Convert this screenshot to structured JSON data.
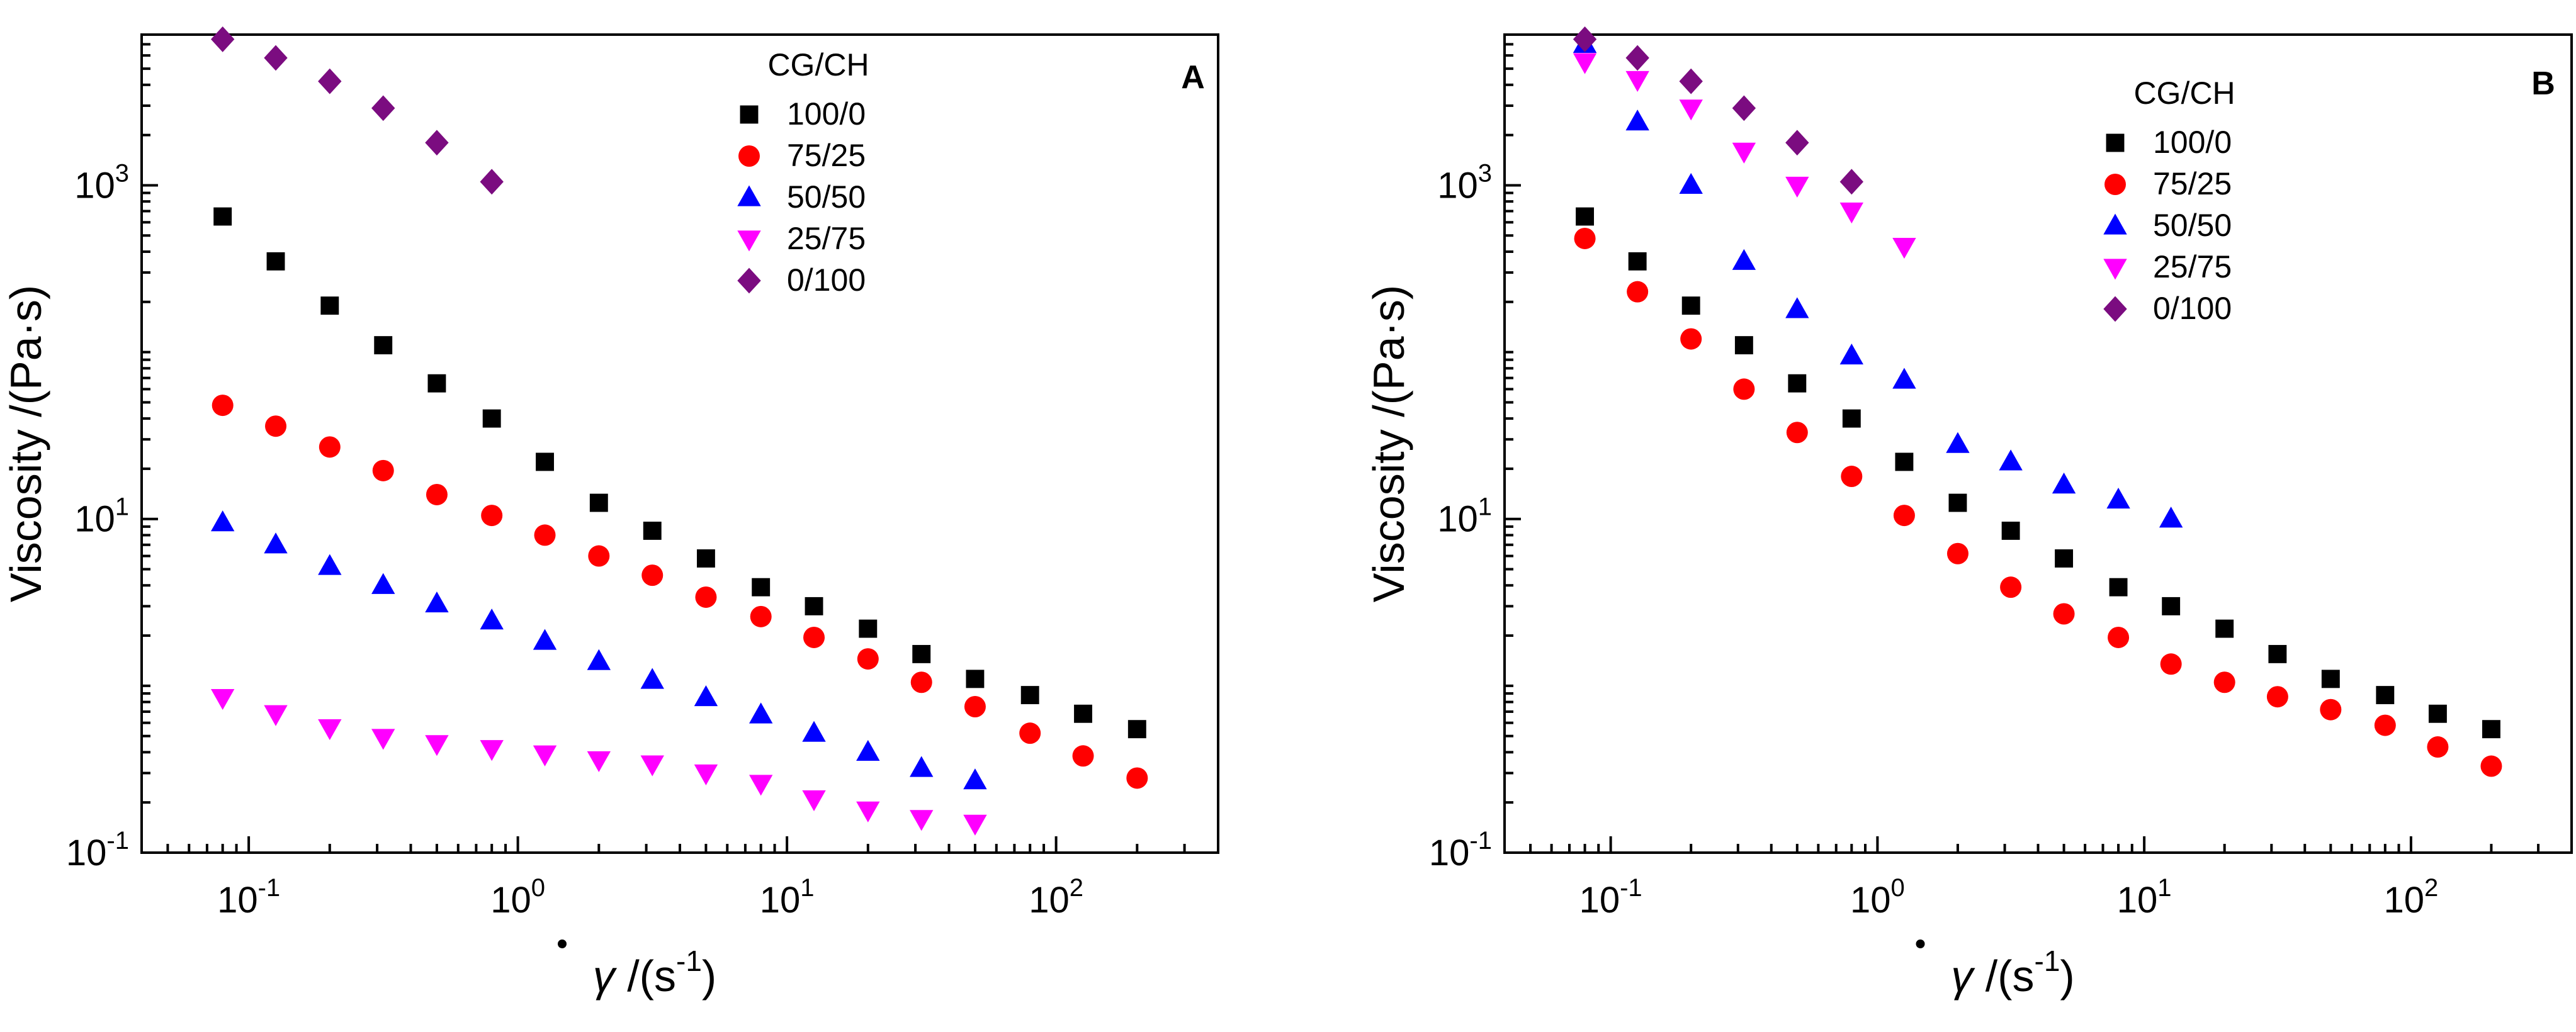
{
  "figure": {
    "panels": [
      "A",
      "B"
    ]
  },
  "chart_data": [
    {
      "type": "scatter",
      "panel_label": "A",
      "xscale": "log",
      "yscale": "log",
      "xlim": [
        0.04,
        400
      ],
      "ylim": [
        0.1,
        8000
      ],
      "xlabel_symbol": "γ",
      "xlabel_unit": " /(s",
      "xlabel_exp": "-1",
      "xlabel_close": ")",
      "ylabel": "Viscosity /(Pa·s)",
      "x_ticks": [
        {
          "value": 0.1,
          "mant": "10",
          "exp": "-1"
        },
        {
          "value": 1,
          "mant": "10",
          "exp": "0"
        },
        {
          "value": 10,
          "mant": "10",
          "exp": "1"
        },
        {
          "value": 100,
          "mant": "10",
          "exp": "2"
        }
      ],
      "y_ticks": [
        {
          "value": 0.1,
          "mant": "10",
          "exp": "-1"
        },
        {
          "value": 10,
          "mant": "10",
          "exp": "1"
        },
        {
          "value": 1000,
          "mant": "10",
          "exp": "3"
        }
      ],
      "legend_title": "CG/CH",
      "legend_position": "top-right",
      "series": [
        {
          "name": "100/0",
          "marker": "square",
          "color": "#000000",
          "x": [
            0.08,
            0.126,
            0.2,
            0.316,
            0.5,
            0.8,
            1.26,
            2,
            3.16,
            5,
            8,
            12.6,
            20,
            31.6,
            50,
            80,
            126,
            200
          ],
          "y": [
            650,
            350,
            190,
            110,
            65,
            40,
            22,
            12.5,
            8.5,
            5.8,
            3.9,
            3.0,
            2.2,
            1.55,
            1.1,
            0.88,
            0.68,
            0.55
          ]
        },
        {
          "name": "75/25",
          "marker": "circle",
          "color": "#ff0000",
          "x": [
            0.08,
            0.126,
            0.2,
            0.316,
            0.5,
            0.8,
            1.26,
            2,
            3.16,
            5,
            8,
            12.6,
            20,
            31.6,
            50,
            80,
            126,
            200
          ],
          "y": [
            48,
            36,
            27,
            19.5,
            14,
            10.5,
            8,
            6,
            4.6,
            3.4,
            2.6,
            1.95,
            1.45,
            1.05,
            0.75,
            0.52,
            0.38,
            0.28
          ]
        },
        {
          "name": "50/50",
          "marker": "triangle-up",
          "color": "#0000ff",
          "x": [
            0.08,
            0.126,
            0.2,
            0.316,
            0.5,
            0.8,
            1.26,
            2,
            3.16,
            5,
            8,
            12.6,
            20,
            31.6,
            50
          ],
          "y": [
            9.5,
            7,
            5.2,
            4,
            3.1,
            2.45,
            1.85,
            1.4,
            1.08,
            0.85,
            0.67,
            0.52,
            0.4,
            0.32,
            0.27
          ]
        },
        {
          "name": "25/75",
          "marker": "triangle-down",
          "color": "#ff00ff",
          "x": [
            0.08,
            0.126,
            0.2,
            0.316,
            0.5,
            0.8,
            1.26,
            2,
            3.16,
            5,
            8,
            12.6,
            20,
            31.6,
            50
          ],
          "y": [
            0.85,
            0.68,
            0.56,
            0.49,
            0.45,
            0.42,
            0.39,
            0.36,
            0.34,
            0.3,
            0.26,
            0.21,
            0.18,
            0.16,
            0.15
          ]
        },
        {
          "name": "0/100",
          "marker": "diamond",
          "color": "#7b0c80",
          "x": [
            0.08,
            0.126,
            0.2,
            0.316,
            0.5,
            0.8
          ],
          "y": [
            7500,
            5800,
            4200,
            2900,
            1800,
            1050
          ]
        }
      ]
    },
    {
      "type": "scatter",
      "panel_label": "B",
      "xscale": "log",
      "yscale": "log",
      "xlim": [
        0.04,
        400
      ],
      "ylim": [
        0.1,
        8000
      ],
      "xlabel_symbol": "γ",
      "xlabel_unit": " /(s",
      "xlabel_exp": "-1",
      "xlabel_close": ")",
      "ylabel": "Viscosity /(Pa·s)",
      "x_ticks": [
        {
          "value": 0.1,
          "mant": "10",
          "exp": "-1"
        },
        {
          "value": 1,
          "mant": "10",
          "exp": "0"
        },
        {
          "value": 10,
          "mant": "10",
          "exp": "1"
        },
        {
          "value": 100,
          "mant": "10",
          "exp": "2"
        }
      ],
      "y_ticks": [
        {
          "value": 0.1,
          "mant": "10",
          "exp": "-1"
        },
        {
          "value": 10,
          "mant": "10",
          "exp": "1"
        },
        {
          "value": 1000,
          "mant": "10",
          "exp": "3"
        }
      ],
      "legend_title": "CG/CH",
      "legend_position": "top-right",
      "series": [
        {
          "name": "100/0",
          "marker": "square",
          "color": "#000000",
          "x": [
            0.08,
            0.126,
            0.2,
            0.316,
            0.5,
            0.8,
            1.26,
            2,
            3.16,
            5,
            8,
            12.6,
            20,
            31.6,
            50,
            80,
            126,
            200
          ],
          "y": [
            650,
            350,
            190,
            110,
            65,
            40,
            22,
            12.5,
            8.5,
            5.8,
            3.9,
            3.0,
            2.2,
            1.55,
            1.1,
            0.88,
            0.68,
            0.55
          ]
        },
        {
          "name": "75/25",
          "marker": "circle",
          "color": "#ff0000",
          "x": [
            0.08,
            0.126,
            0.2,
            0.316,
            0.5,
            0.8,
            1.26,
            2,
            3.16,
            5,
            8,
            12.6,
            20,
            31.6,
            50,
            80,
            126,
            200
          ],
          "y": [
            480,
            230,
            120,
            60,
            33,
            18,
            10.5,
            6.2,
            3.9,
            2.7,
            1.95,
            1.35,
            1.05,
            0.86,
            0.72,
            0.58,
            0.43,
            0.33
          ]
        },
        {
          "name": "50/50",
          "marker": "triangle-up",
          "color": "#0000ff",
          "x": [
            0.08,
            0.126,
            0.2,
            0.316,
            0.5,
            0.8,
            1.26,
            2,
            3.16,
            5,
            8,
            12.6
          ],
          "y": [
            7000,
            2400,
            1000,
            350,
            180,
            95,
            68,
            28,
            22,
            16,
            13,
            10
          ]
        },
        {
          "name": "25/75",
          "marker": "triangle-down",
          "color": "#ff00ff",
          "x": [
            0.08,
            0.126,
            0.2,
            0.316,
            0.5,
            0.8,
            1.26
          ],
          "y": [
            5500,
            4300,
            2900,
            1600,
            1000,
            700,
            430
          ]
        },
        {
          "name": "0/100",
          "marker": "diamond",
          "color": "#7b0c80",
          "x": [
            0.08,
            0.126,
            0.2,
            0.316,
            0.5,
            0.8
          ],
          "y": [
            7500,
            5800,
            4200,
            2900,
            1800,
            1050
          ]
        }
      ]
    }
  ]
}
